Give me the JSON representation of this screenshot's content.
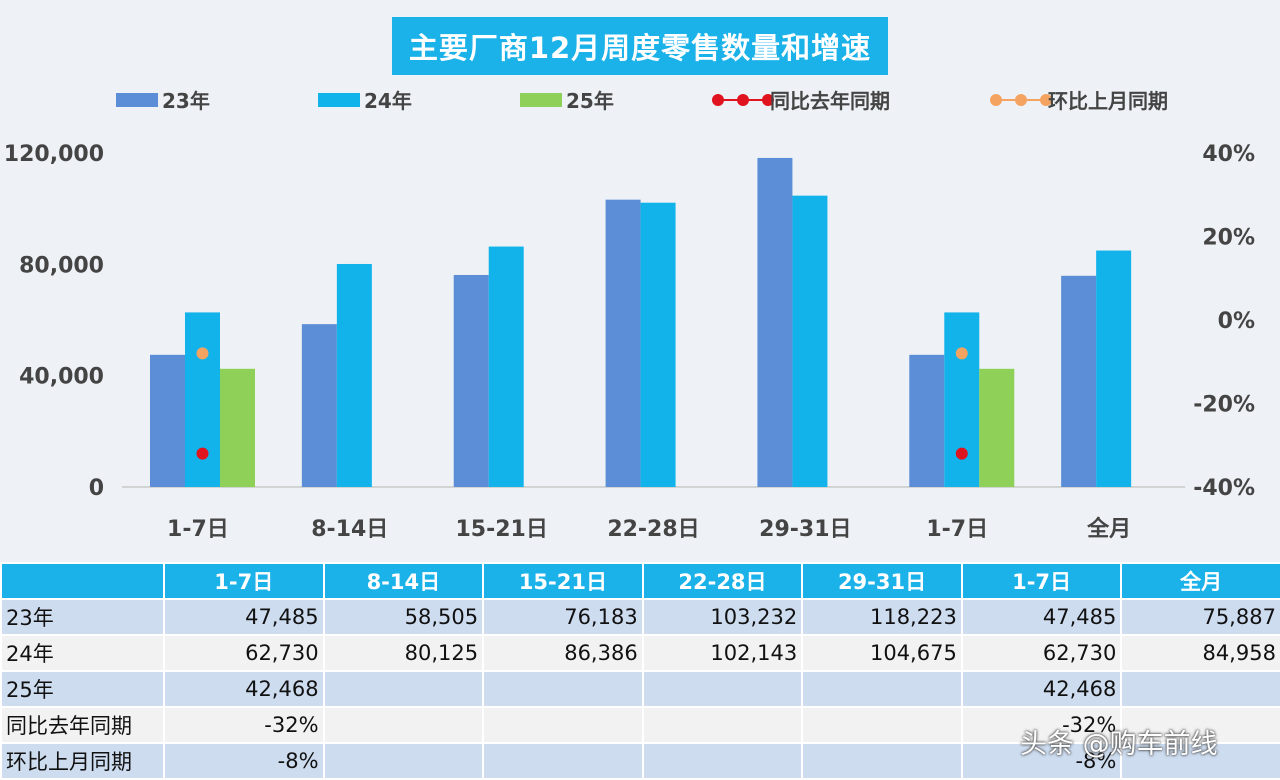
{
  "chart_data": {
    "type": "bar",
    "title": "主要厂商12月周度零售数量和增速",
    "categories": [
      "1-7日",
      "8-14日",
      "15-21日",
      "22-28日",
      "29-31日",
      "1-7日",
      "全月"
    ],
    "series": [
      {
        "name": "23年",
        "values": [
          47485,
          58505,
          76183,
          103232,
          118223,
          47485,
          75887
        ],
        "color": "#5b8ed6"
      },
      {
        "name": "24年",
        "values": [
          62730,
          80125,
          86386,
          102143,
          104675,
          62730,
          84958
        ],
        "color": "#12b3ea"
      },
      {
        "name": "25年",
        "values": [
          42468,
          null,
          null,
          null,
          null,
          42468,
          null
        ],
        "color": "#8ed058"
      }
    ],
    "line_series": [
      {
        "name": "同比去年同期",
        "values": [
          -32,
          null,
          null,
          null,
          null,
          -32,
          null
        ],
        "axis": "right",
        "color": "#e0141e"
      },
      {
        "name": "环比上月同期",
        "values": [
          -8,
          null,
          null,
          null,
          null,
          -8,
          null
        ],
        "axis": "right",
        "color": "#f4a460"
      }
    ],
    "ylim": [
      0,
      120000
    ],
    "yticks": [
      "0",
      "40,000",
      "80,000",
      "120,000"
    ],
    "ytick_values": [
      0,
      40000,
      80000,
      120000
    ],
    "y2lim": [
      -40,
      40
    ],
    "y2ticks": [
      "-40%",
      "-20%",
      "0%",
      "20%",
      "40%"
    ],
    "y2tick_values": [
      -40,
      -20,
      0,
      20,
      40
    ],
    "legend_position": "top"
  },
  "table": {
    "headers": [
      "",
      "1-7日",
      "8-14日",
      "15-21日",
      "22-28日",
      "29-31日",
      "1-7日",
      "全月"
    ],
    "rows": [
      {
        "label": "23年",
        "cells": [
          "47,485",
          "58,505",
          "76,183",
          "103,232",
          "118,223",
          "47,485",
          "75,887"
        ]
      },
      {
        "label": "24年",
        "cells": [
          "62,730",
          "80,125",
          "86,386",
          "102,143",
          "104,675",
          "62,730",
          "84,958"
        ]
      },
      {
        "label": "25年",
        "cells": [
          "42,468",
          "",
          "",
          "",
          "",
          "42,468",
          ""
        ]
      },
      {
        "label": "同比去年同期",
        "cells": [
          "-32%",
          "",
          "",
          "",
          "",
          "-32%",
          ""
        ]
      },
      {
        "label": "环比上月同期",
        "cells": [
          "-8%",
          "",
          "",
          "",
          "",
          "-8%",
          ""
        ]
      }
    ]
  },
  "watermark": "头条 @购车前线"
}
